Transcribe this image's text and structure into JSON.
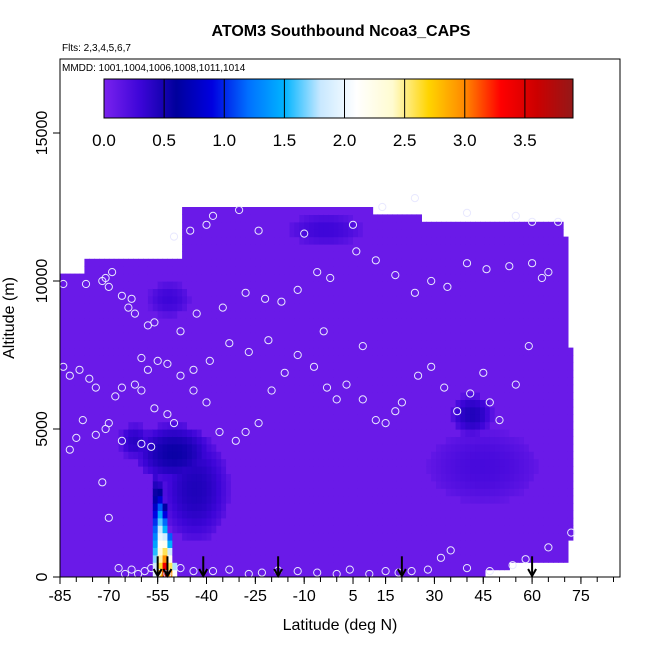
{
  "chart_data": {
    "type": "heatmap",
    "title": "ATOM3 Southbound Ncoa3_CAPS",
    "flights_label": "Flts: 2,3,4,5,6,7",
    "mmdd_label": "MMDD: 1001,1004,1006,1008,1011,1014",
    "xlabel": "Latitude (deg N)",
    "ylabel": "Altitude (m)",
    "xlim": [
      -85,
      87
    ],
    "ylim": [
      0,
      17500
    ],
    "x_ticks": [
      -85,
      -70,
      -55,
      -40,
      -25,
      -10,
      5,
      15,
      30,
      45,
      60,
      75
    ],
    "x_tick_labels": [
      "-85",
      "-70",
      "-55",
      "-40",
      "-25",
      "-10",
      "5",
      "15",
      "30",
      "45",
      "60",
      "75"
    ],
    "y_ticks": [
      0,
      5000,
      10000,
      15000
    ],
    "y_tick_labels": [
      "0",
      "5000",
      "10000",
      "15000"
    ],
    "colorbar": {
      "range": [
        0,
        3.9
      ],
      "ticks": [
        0.0,
        0.5,
        1.0,
        1.5,
        2.0,
        2.5,
        3.0,
        3.5
      ],
      "tick_labels": [
        "0.0",
        "0.5",
        "1.0",
        "1.5",
        "2.0",
        "2.5",
        "3.0",
        "3.5"
      ],
      "colors": [
        "#7a22ee",
        "#3d05d8",
        "#00009c",
        "#0000e0",
        "#0070ff",
        "#00b4ff",
        "#c8e8ff",
        "#ffffff",
        "#fffbd0",
        "#ffd400",
        "#ff8800",
        "#ff0000",
        "#cc0000",
        "#941818"
      ]
    },
    "background_value": 0.08,
    "sample_boundary": [
      [
        -84.5,
        0
      ],
      [
        -84.5,
        10300
      ],
      [
        -77,
        10300
      ],
      [
        -77,
        10700
      ],
      [
        -48,
        10700
      ],
      [
        -48,
        12400
      ],
      [
        -21,
        12400
      ],
      [
        -21,
        13000
      ],
      [
        -20.5,
        13000
      ],
      [
        -20.5,
        12400
      ],
      [
        10,
        12400
      ],
      [
        28,
        12100
      ],
      [
        70,
        12100
      ],
      [
        72,
        7000
      ],
      [
        72,
        1200
      ],
      [
        71,
        1200
      ],
      [
        71,
        500
      ],
      [
        53,
        500
      ],
      [
        53,
        250
      ],
      [
        45,
        250
      ],
      [
        45,
        0
      ]
    ],
    "hotspots": [
      {
        "lat": [
          -62,
          -38
        ],
        "alt": [
          3200,
          5200
        ],
        "value": 0.55
      },
      {
        "lat": [
          -54,
          -33
        ],
        "alt": [
          1200,
          4800
        ],
        "value": 0.45
      },
      {
        "lat": [
          -67,
          -57
        ],
        "alt": [
          4000,
          5200
        ],
        "value": 0.4
      },
      {
        "lat": [
          35,
          48
        ],
        "alt": [
          4800,
          6200
        ],
        "value": 0.45
      },
      {
        "lat": [
          28,
          62
        ],
        "alt": [
          2500,
          5000
        ],
        "value": 0.25
      },
      {
        "lat": [
          -15,
          8
        ],
        "alt": [
          11200,
          12300
        ],
        "value": 0.3
      },
      {
        "lat": [
          -58,
          -45
        ],
        "alt": [
          8800,
          10000
        ],
        "value": 0.3
      }
    ],
    "plume": {
      "description": "Elevated values near -55 to -50 deg N below 4000 m",
      "peak_lat": -52.5,
      "peak_alt": 200,
      "peak_value": 3.9,
      "lat_extent": [
        -57,
        -49
      ],
      "alt_extent": [
        0,
        4200
      ]
    },
    "sample_points": [
      [
        -84,
        9900
      ],
      [
        -77,
        9900
      ],
      [
        -74,
        6400
      ],
      [
        -72,
        10000
      ],
      [
        -71,
        10100
      ],
      [
        -70,
        9800
      ],
      [
        -69,
        10300
      ],
      [
        -66,
        9500
      ],
      [
        -64,
        9100
      ],
      [
        -63,
        9400
      ],
      [
        -62,
        8900
      ],
      [
        -58,
        8500
      ],
      [
        -56,
        8600
      ],
      [
        -60,
        7400
      ],
      [
        -55,
        7300
      ],
      [
        -52,
        7200
      ],
      [
        -58,
        7000
      ],
      [
        -62,
        6500
      ],
      [
        -66,
        6400
      ],
      [
        -68,
        6100
      ],
      [
        -70,
        5200
      ],
      [
        -71,
        5000
      ],
      [
        -74,
        4800
      ],
      [
        -78,
        5300
      ],
      [
        -80,
        4700
      ],
      [
        -82,
        4300
      ],
      [
        -60,
        6300
      ],
      [
        -56,
        5700
      ],
      [
        -52,
        5500
      ],
      [
        -50,
        5200
      ],
      [
        -44,
        6300
      ],
      [
        -40,
        5900
      ],
      [
        -36,
        4900
      ],
      [
        -31,
        4600
      ],
      [
        -28,
        4900
      ],
      [
        -24,
        5200
      ],
      [
        -20,
        6300
      ],
      [
        -16,
        6900
      ],
      [
        -12,
        7500
      ],
      [
        -7,
        7100
      ],
      [
        -3,
        6400
      ],
      [
        0,
        6000
      ],
      [
        3,
        6500
      ],
      [
        8,
        6000
      ],
      [
        12,
        5300
      ],
      [
        15,
        5200
      ],
      [
        18,
        5600
      ],
      [
        20,
        5900
      ],
      [
        25,
        6800
      ],
      [
        29,
        7100
      ],
      [
        33,
        6400
      ],
      [
        37,
        5600
      ],
      [
        41,
        6200
      ],
      [
        45,
        6900
      ],
      [
        47,
        5900
      ],
      [
        50,
        5300
      ],
      [
        55,
        6500
      ],
      [
        59,
        7800
      ],
      [
        63,
        10100
      ],
      [
        65,
        10300
      ],
      [
        60,
        10600
      ],
      [
        53,
        10500
      ],
      [
        46,
        10400
      ],
      [
        40,
        10600
      ],
      [
        34,
        9800
      ],
      [
        29,
        10000
      ],
      [
        24,
        9600
      ],
      [
        18,
        10200
      ],
      [
        12,
        10700
      ],
      [
        6,
        11000
      ],
      [
        -2,
        10100
      ],
      [
        -6,
        10300
      ],
      [
        -12,
        9700
      ],
      [
        -17,
        9300
      ],
      [
        -22,
        9400
      ],
      [
        -28,
        9600
      ],
      [
        -35,
        9100
      ],
      [
        -43,
        8900
      ],
      [
        -48,
        8300
      ],
      [
        -50,
        11500
      ],
      [
        -45,
        11700
      ],
      [
        -40,
        11900
      ],
      [
        -38,
        12200
      ],
      [
        -30,
        12400
      ],
      [
        -24,
        11700
      ],
      [
        -10,
        11600
      ],
      [
        5,
        11900
      ],
      [
        14,
        12500
      ],
      [
        24,
        12800
      ],
      [
        40,
        12300
      ],
      [
        55,
        12200
      ],
      [
        60,
        12000
      ],
      [
        68,
        12000
      ],
      [
        72,
        1500
      ],
      [
        65,
        1000
      ],
      [
        58,
        600
      ],
      [
        54,
        400
      ],
      [
        47,
        200
      ],
      [
        40,
        300
      ],
      [
        35,
        900
      ],
      [
        32,
        650
      ],
      [
        28,
        250
      ],
      [
        23,
        200
      ],
      [
        19,
        150
      ],
      [
        15,
        200
      ],
      [
        10,
        100
      ],
      [
        4,
        250
      ],
      [
        0,
        100
      ],
      [
        -6,
        150
      ],
      [
        -12,
        200
      ],
      [
        -18,
        220
      ],
      [
        -23,
        150
      ],
      [
        -27,
        100
      ],
      [
        -33,
        250
      ],
      [
        -38,
        200
      ],
      [
        -44,
        200
      ],
      [
        -48,
        300
      ],
      [
        -52,
        100
      ],
      [
        -55,
        150
      ],
      [
        -57,
        300
      ],
      [
        -59,
        200
      ],
      [
        -61,
        100
      ],
      [
        -63,
        250
      ],
      [
        -65,
        100
      ],
      [
        -67,
        300
      ],
      [
        -57,
        4400
      ],
      [
        -60,
        4500
      ],
      [
        -66,
        4600
      ],
      [
        -70,
        2000
      ],
      [
        -72,
        3200
      ],
      [
        -76,
        6700
      ],
      [
        -79,
        7000
      ],
      [
        -82,
        6800
      ],
      [
        -84,
        7100
      ],
      [
        8,
        7800
      ],
      [
        -4,
        8300
      ],
      [
        -21,
        8000
      ],
      [
        -27,
        7600
      ],
      [
        -33,
        7900
      ],
      [
        -39,
        7300
      ],
      [
        -44,
        7000
      ],
      [
        -48,
        6800
      ]
    ],
    "arrows_lat": [
      -55,
      -52,
      -41,
      -18,
      20,
      60
    ]
  }
}
